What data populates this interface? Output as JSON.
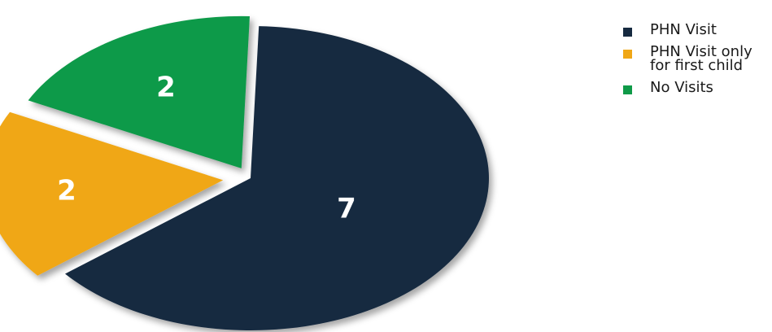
{
  "chart_data": {
    "type": "pie",
    "categories": [
      "PHN Visit",
      "PHN Visit only for first child",
      "No Visits"
    ],
    "values": [
      7,
      2,
      2
    ],
    "colors": [
      "#162a40",
      "#f0a716",
      "#0f9a48"
    ],
    "label_colors": [
      "#ffffff",
      "#ffffff",
      "#ffffff"
    ],
    "exploded": [
      false,
      true,
      true
    ],
    "three_d": true,
    "legend_position": "right"
  }
}
